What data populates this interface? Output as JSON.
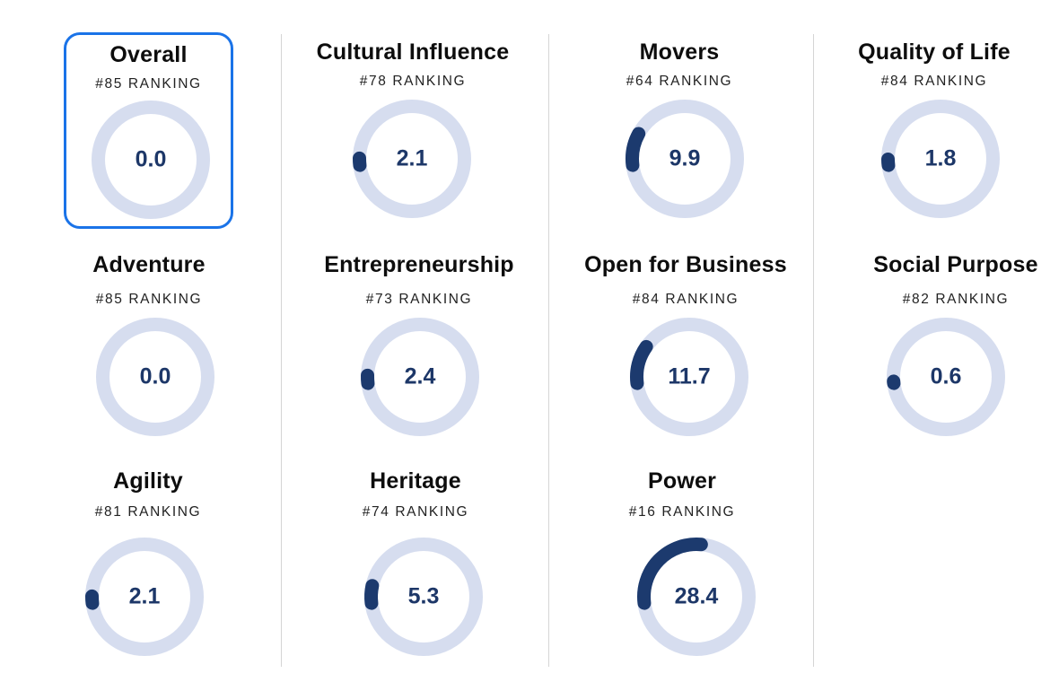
{
  "colors": {
    "ring_track": "#d6ddef",
    "ring_progress": "#1c3a6e",
    "value_text": "#1d3768",
    "selected_border": "#1a73e8"
  },
  "ranking_suffix": "RANKING",
  "categories": [
    {
      "title": "Overall",
      "rank": "#85 RANKING",
      "value": "0.0",
      "progress": 0.0,
      "selected": true
    },
    {
      "title": "Cultural Influence",
      "rank": "#78 RANKING",
      "value": "2.1",
      "progress": 0.021,
      "selected": false
    },
    {
      "title": "Movers",
      "rank": "#64 RANKING",
      "value": "9.9",
      "progress": 0.099,
      "selected": false
    },
    {
      "title": "Quality of Life",
      "rank": "#84 RANKING",
      "value": "1.8",
      "progress": 0.018,
      "selected": false
    },
    {
      "title": "Adventure",
      "rank": "#85 RANKING",
      "value": "0.0",
      "progress": 0.0,
      "selected": false
    },
    {
      "title": "Entrepreneurship",
      "rank": "#73 RANKING",
      "value": "2.4",
      "progress": 0.024,
      "selected": false
    },
    {
      "title": "Open for Business",
      "rank": "#84 RANKING",
      "value": "11.7",
      "progress": 0.117,
      "selected": false
    },
    {
      "title": "Social Purpose",
      "rank": "#82 RANKING",
      "value": "0.6",
      "progress": 0.006,
      "selected": false
    },
    {
      "title": "Agility",
      "rank": "#81 RANKING",
      "value": "2.1",
      "progress": 0.021,
      "selected": false
    },
    {
      "title": "Heritage",
      "rank": "#74 RANKING",
      "value": "5.3",
      "progress": 0.053,
      "selected": false
    },
    {
      "title": "Power",
      "rank": "#16 RANKING",
      "value": "28.4",
      "progress": 0.284,
      "selected": false
    }
  ]
}
